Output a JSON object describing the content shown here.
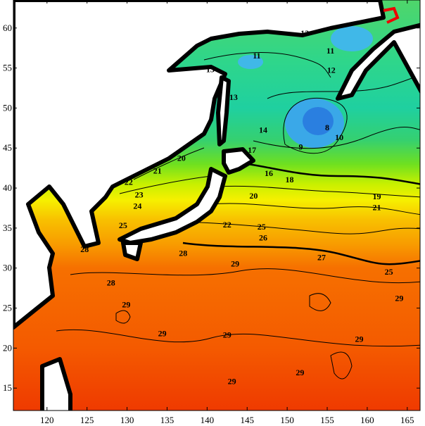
{
  "map": {
    "type": "contour",
    "variable_unit": "temperature contours",
    "x_ticks": [
      "120",
      "125",
      "130",
      "135",
      "140",
      "145",
      "150",
      "155",
      "160",
      "165"
    ],
    "x_tick_values": [
      120,
      125,
      130,
      135,
      140,
      145,
      150,
      155,
      160,
      165
    ],
    "y_ticks": [
      "15",
      "20",
      "25",
      "30",
      "35",
      "40",
      "45",
      "50",
      "55",
      "60"
    ],
    "y_tick_values": [
      15,
      20,
      25,
      30,
      35,
      40,
      45,
      50,
      55,
      60
    ],
    "lon_range": [
      115.8,
      166.6
    ],
    "lat_range": [
      12.2,
      63.5
    ],
    "color_scale": [
      {
        "lat": 63.5,
        "color": "#4fd66a"
      },
      {
        "lat": 56,
        "color": "#2fd68a"
      },
      {
        "lat": 50,
        "color": "#1fd0a0"
      },
      {
        "lat": 46,
        "color": "#35d070"
      },
      {
        "lat": 43,
        "color": "#6ee020"
      },
      {
        "lat": 40.5,
        "color": "#c8f000"
      },
      {
        "lat": 38.5,
        "color": "#f6f000"
      },
      {
        "lat": 36,
        "color": "#f8c000"
      },
      {
        "lat": 33,
        "color": "#f89c00"
      },
      {
        "lat": 30,
        "color": "#f67000"
      },
      {
        "lat": 20,
        "color": "#f45a00"
      },
      {
        "lat": 12.2,
        "color": "#ef3a00"
      }
    ],
    "land_color": "#ffffff",
    "coast_color": "#000000",
    "cold_pool_color": "#3aa8e8",
    "contour_labels": [
      {
        "text": "12",
        "lon": 152.2,
        "lat": 59.0
      },
      {
        "text": "11",
        "lon": 155.4,
        "lat": 56.8
      },
      {
        "text": "12",
        "lon": 155.5,
        "lat": 54.4
      },
      {
        "text": "13",
        "lon": 140.4,
        "lat": 54.5
      },
      {
        "text": "11",
        "lon": 146.2,
        "lat": 56.2
      },
      {
        "text": "13",
        "lon": 143.3,
        "lat": 51.0
      },
      {
        "text": "14",
        "lon": 147.0,
        "lat": 46.9
      },
      {
        "text": "10",
        "lon": 156.5,
        "lat": 46.0
      },
      {
        "text": "9",
        "lon": 151.7,
        "lat": 44.8
      },
      {
        "text": "8",
        "lon": 155.0,
        "lat": 47.2
      },
      {
        "text": "17",
        "lon": 145.6,
        "lat": 44.4
      },
      {
        "text": "20",
        "lon": 136.8,
        "lat": 43.4
      },
      {
        "text": "21",
        "lon": 133.8,
        "lat": 41.8
      },
      {
        "text": "22",
        "lon": 130.2,
        "lat": 40.4
      },
      {
        "text": "23",
        "lon": 131.5,
        "lat": 38.8
      },
      {
        "text": "24",
        "lon": 131.3,
        "lat": 38.1
      },
      {
        "text": "16",
        "lon": 147.7,
        "lat": 41.5
      },
      {
        "text": "18",
        "lon": 150.3,
        "lat": 40.7
      },
      {
        "text": "20",
        "lon": 145.8,
        "lat": 38.7
      },
      {
        "text": "19",
        "lon": 161.2,
        "lat": 38.6
      },
      {
        "text": "21",
        "lon": 161.2,
        "lat": 37.6
      },
      {
        "text": "22",
        "lon": 142.5,
        "lat": 35.1
      },
      {
        "text": "25",
        "lon": 129.5,
        "lat": 35.0
      },
      {
        "text": "25",
        "lon": 146.8,
        "lat": 34.8
      },
      {
        "text": "26",
        "lon": 147.0,
        "lat": 33.8
      },
      {
        "text": "27",
        "lon": 154.3,
        "lat": 31.0
      },
      {
        "text": "25",
        "lon": 162.7,
        "lat": 29.2
      },
      {
        "text": "28",
        "lon": 124.7,
        "lat": 32.0
      },
      {
        "text": "28",
        "lon": 137.0,
        "lat": 31.5
      },
      {
        "text": "29",
        "lon": 143.5,
        "lat": 30.2
      },
      {
        "text": "28",
        "lon": 128.0,
        "lat": 27.8
      },
      {
        "text": "29",
        "lon": 129.9,
        "lat": 25.1
      },
      {
        "text": "29",
        "lon": 134.4,
        "lat": 21.5
      },
      {
        "text": "29",
        "lon": 142.5,
        "lat": 21.3
      },
      {
        "text": "29",
        "lon": 159.0,
        "lat": 20.8
      },
      {
        "text": "29",
        "lon": 164.0,
        "lat": 25.9
      },
      {
        "text": "29",
        "lon": 143.1,
        "lat": 15.5
      },
      {
        "text": "29",
        "lon": 151.6,
        "lat": 16.6
      }
    ]
  }
}
